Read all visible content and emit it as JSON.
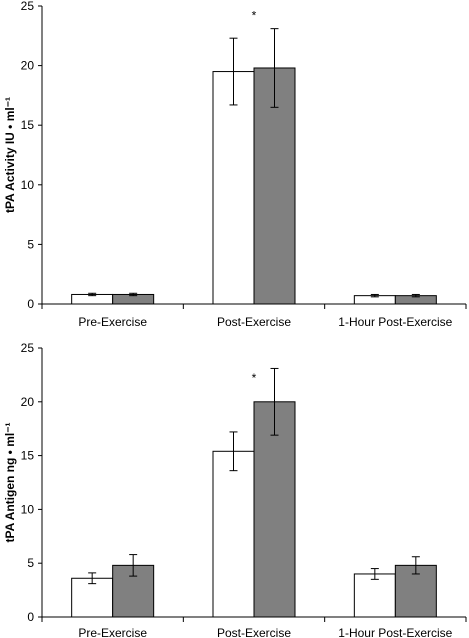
{
  "chart_data": [
    {
      "type": "bar",
      "categories": [
        "Pre-Exercise",
        "Post-Exercise",
        "1-Hour Post-Exercise"
      ],
      "series": [
        {
          "values": [
            0.8,
            19.5,
            0.7
          ],
          "errors": [
            0.1,
            2.8,
            0.1
          ],
          "color": "#ffffff"
        },
        {
          "values": [
            0.8,
            19.8,
            0.7
          ],
          "errors": [
            0.1,
            3.3,
            0.1
          ],
          "color": "#808080"
        }
      ],
      "ylabel": "tPA Activity IU • ml⁻¹",
      "xlabel": "",
      "ylim": [
        0,
        25
      ],
      "yticks": [
        0,
        5,
        10,
        15,
        20,
        25
      ],
      "grid": false,
      "annotations": [
        {
          "text": "*",
          "category": "Post-Exercise",
          "y": 24.2
        }
      ]
    },
    {
      "type": "bar",
      "categories": [
        "Pre-Exercise",
        "Post-Exercise",
        "1-Hour Post-Exercise"
      ],
      "series": [
        {
          "values": [
            3.6,
            15.4,
            4.0
          ],
          "errors": [
            0.5,
            1.8,
            0.5
          ],
          "color": "#ffffff"
        },
        {
          "values": [
            4.8,
            20.0,
            4.8
          ],
          "errors": [
            1.0,
            3.1,
            0.8
          ],
          "color": "#808080"
        }
      ],
      "ylabel": "tPA Antigen ng • ml⁻¹",
      "xlabel": "",
      "ylim": [
        0,
        25
      ],
      "yticks": [
        0,
        5,
        10,
        15,
        20,
        25
      ],
      "grid": false,
      "annotations": [
        {
          "text": "*",
          "category": "Post-Exercise",
          "y": 22.2
        }
      ]
    }
  ]
}
